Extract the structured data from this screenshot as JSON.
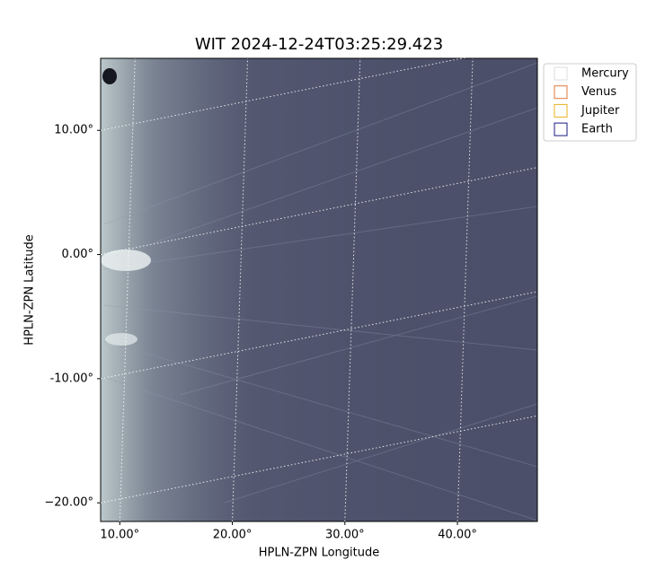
{
  "chart_data": {
    "type": "image",
    "title": "WIT 2024-12-24T03:25:29.423",
    "x_label": "HPLN-ZPN Longitude",
    "y_label": "HPLN-ZPN Latitude",
    "xlim": [
      8.3,
      47.1
    ],
    "ylim": [
      -21.5,
      15.8
    ],
    "xticks": [
      {
        "value": 10,
        "label": "10.00°"
      },
      {
        "value": 20,
        "label": "20.00°"
      },
      {
        "value": 30,
        "label": "30.00°"
      },
      {
        "value": 40,
        "label": "40.00°"
      }
    ],
    "yticks": [
      {
        "value": 10,
        "label": "10.00°"
      },
      {
        "value": 0,
        "label": "0.00°"
      },
      {
        "value": -10,
        "label": "-10.00°"
      },
      {
        "value": -20,
        "label": "−20.00°"
      }
    ],
    "grid": true,
    "legend_position": "outside-upper-right",
    "series": [
      {
        "name": "Mercury",
        "color": "#dcdcdc"
      },
      {
        "name": "Venus",
        "color": "#e07a3a"
      },
      {
        "name": "Jupiter",
        "color": "#e8b020"
      },
      {
        "name": "Earth",
        "color": "#1a1a80"
      }
    ]
  }
}
